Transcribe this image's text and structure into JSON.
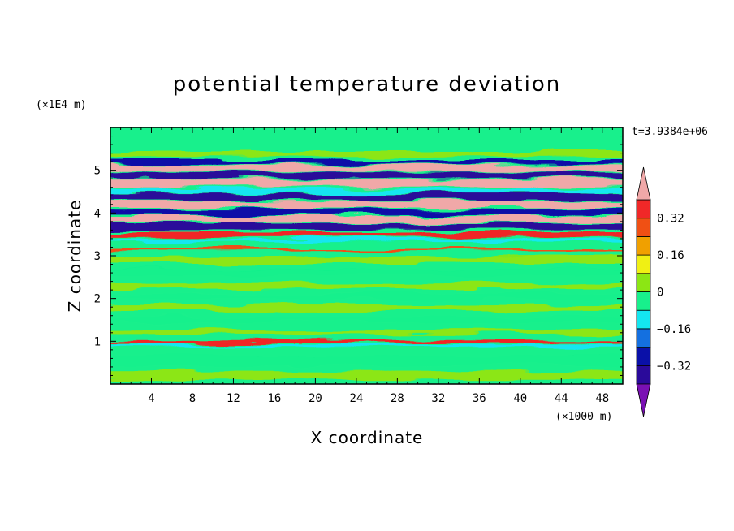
{
  "chart_data": {
    "type": "heatmap",
    "title": "potential temperature deviation",
    "xlabel": "X coordinate",
    "ylabel": "Z coordinate",
    "x_unit": "(×1000 m)",
    "y_unit": "(×1E4 m)",
    "time_label": "t=3.9384e+06",
    "xlim": [
      0,
      50
    ],
    "ylim": [
      0,
      6
    ],
    "x_ticks": [
      4,
      8,
      12,
      16,
      20,
      24,
      28,
      32,
      36,
      40,
      44,
      48
    ],
    "y_ticks": [
      1,
      2,
      3,
      4,
      5
    ],
    "colorbar": {
      "levels": [
        -0.4,
        -0.32,
        -0.24,
        -0.16,
        -0.08,
        0,
        0.08,
        0.16,
        0.24,
        0.32,
        0.4
      ],
      "labels": [
        "0.32",
        "0.16",
        "0",
        "−0.16",
        "−0.32"
      ],
      "label_values": [
        0.32,
        0.16,
        0,
        -0.16,
        -0.32
      ],
      "colors": [
        "#7a10b4",
        "#2a0a9a",
        "#0a10a8",
        "#1470e0",
        "#14e6f0",
        "#18f08c",
        "#8ce614",
        "#f0f014",
        "#f0a000",
        "#f05014",
        "#f02828",
        "#f0a8a8"
      ],
      "extend": "both"
    },
    "bands": [
      {
        "z": 5.38,
        "halfwidth": 0.06,
        "level": 6
      },
      {
        "z": 5.2,
        "halfwidth": 0.05,
        "level": 2
      },
      {
        "z": 5.05,
        "halfwidth": 0.08,
        "level": 11
      },
      {
        "z": 4.88,
        "halfwidth": 0.07,
        "level": 1
      },
      {
        "z": 4.7,
        "halfwidth": 0.09,
        "level": 11
      },
      {
        "z": 4.52,
        "halfwidth": 0.05,
        "level": 4
      },
      {
        "z": 4.38,
        "halfwidth": 0.08,
        "level": 1
      },
      {
        "z": 4.2,
        "halfwidth": 0.08,
        "level": 11
      },
      {
        "z": 4.02,
        "halfwidth": 0.07,
        "level": 2
      },
      {
        "z": 3.85,
        "halfwidth": 0.08,
        "level": 11
      },
      {
        "z": 3.68,
        "halfwidth": 0.07,
        "level": 1
      },
      {
        "z": 3.5,
        "halfwidth": 0.06,
        "level": 10
      },
      {
        "z": 3.36,
        "halfwidth": 0.04,
        "level": 4
      },
      {
        "z": 3.15,
        "halfwidth": 0.03,
        "level": 9
      },
      {
        "z": 2.9,
        "halfwidth": 0.08,
        "level": 6
      },
      {
        "z": 2.6,
        "halfwidth": 0.07,
        "level": 5
      },
      {
        "z": 2.3,
        "halfwidth": 0.07,
        "level": 6
      },
      {
        "z": 2.05,
        "halfwidth": 0.06,
        "level": 5
      },
      {
        "z": 1.78,
        "halfwidth": 0.07,
        "level": 6
      },
      {
        "z": 1.5,
        "halfwidth": 0.06,
        "level": 5
      },
      {
        "z": 1.22,
        "halfwidth": 0.05,
        "level": 6
      },
      {
        "z": 0.98,
        "halfwidth": 0.03,
        "level": 10
      },
      {
        "z": 0.9,
        "halfwidth": 0.03,
        "level": 4
      },
      {
        "z": 0.55,
        "halfwidth": 0.12,
        "level": 5
      },
      {
        "z": 0.2,
        "halfwidth": 0.1,
        "level": 6
      }
    ]
  }
}
